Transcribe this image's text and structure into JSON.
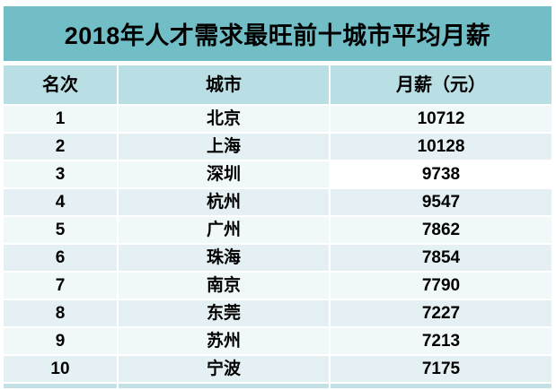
{
  "title": "2018年人才需求最旺前十城市平均月薪",
  "table": {
    "columns": [
      "名次",
      "城市",
      "月薪（元）"
    ],
    "rows": [
      {
        "rank": "1",
        "city": "北京",
        "salary": "10712"
      },
      {
        "rank": "2",
        "city": "上海",
        "salary": "10128"
      },
      {
        "rank": "3",
        "city": "深圳",
        "salary": "9738"
      },
      {
        "rank": "4",
        "city": "杭州",
        "salary": "9547"
      },
      {
        "rank": "5",
        "city": "广州",
        "salary": "7862"
      },
      {
        "rank": "6",
        "city": "珠海",
        "salary": "7854"
      },
      {
        "rank": "7",
        "city": "南京",
        "salary": "7790"
      },
      {
        "rank": "8",
        "city": "东莞",
        "salary": "7227"
      },
      {
        "rank": "9",
        "city": "苏州",
        "salary": "7213"
      },
      {
        "rank": "10",
        "city": "宁波",
        "salary": "7175"
      }
    ]
  },
  "colors": {
    "title_bar": "#72BEC7",
    "header_row": "#B9DEE3",
    "row_odd": "#F1F8FA",
    "row_even": "#E4F0F3",
    "highlight_cell": "#FFFFFF",
    "bottom_strip": "#C2E0E6",
    "text": "#000000"
  },
  "chart_data": {
    "type": "table",
    "title": "2018年人才需求最旺前十城市平均月薪",
    "columns": [
      "名次",
      "城市",
      "月薪（元）"
    ],
    "rows": [
      [
        1,
        "北京",
        10712
      ],
      [
        2,
        "上海",
        10128
      ],
      [
        3,
        "深圳",
        9738
      ],
      [
        4,
        "杭州",
        9547
      ],
      [
        5,
        "广州",
        7862
      ],
      [
        6,
        "珠海",
        7854
      ],
      [
        7,
        "南京",
        7790
      ],
      [
        8,
        "东莞",
        7227
      ],
      [
        9,
        "苏州",
        7213
      ],
      [
        10,
        "宁波",
        7175
      ]
    ],
    "notes": "Highlighted white cell: row 3 salary (9738). All other cells alternate light teal tints."
  }
}
